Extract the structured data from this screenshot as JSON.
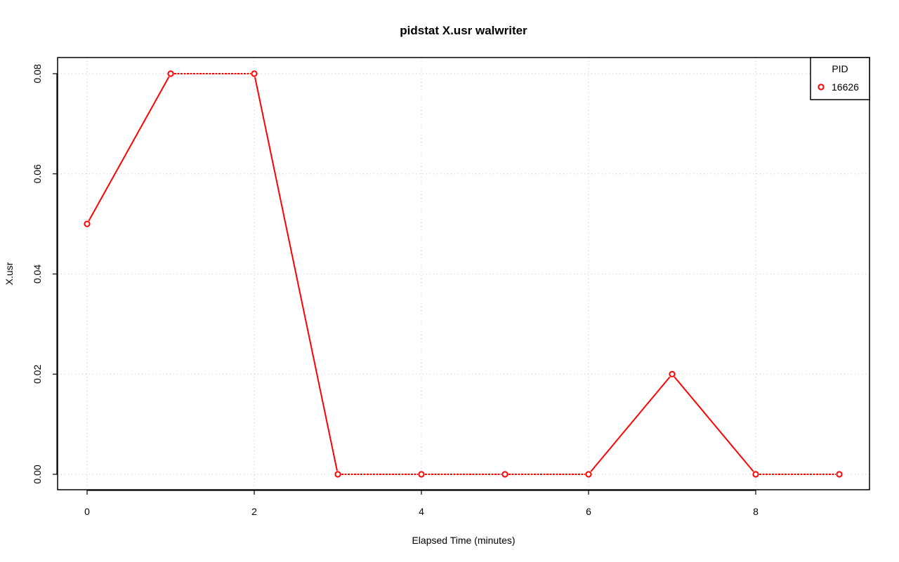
{
  "chart_data": {
    "type": "line",
    "title": "pidstat X.usr walwriter",
    "xlabel": "Elapsed Time (minutes)",
    "ylabel": "X.usr",
    "xlim": [
      0,
      9
    ],
    "ylim": [
      0,
      0.08
    ],
    "x_ticks": [
      "0",
      "2",
      "4",
      "6",
      "8"
    ],
    "y_ticks": [
      "0.00",
      "0.02",
      "0.04",
      "0.06",
      "0.08"
    ],
    "grid": true,
    "legend_position": "top-right",
    "legend_title": "PID",
    "series": [
      {
        "name": "16626",
        "color": "#ff0000",
        "marker": "open-circle",
        "x": [
          0,
          1,
          2,
          3,
          4,
          5,
          6,
          7,
          8,
          9
        ],
        "y": [
          0.05,
          0.08,
          0.08,
          0.0,
          0.0,
          0.0,
          0.0,
          0.02,
          0.0,
          0.0
        ]
      }
    ]
  }
}
